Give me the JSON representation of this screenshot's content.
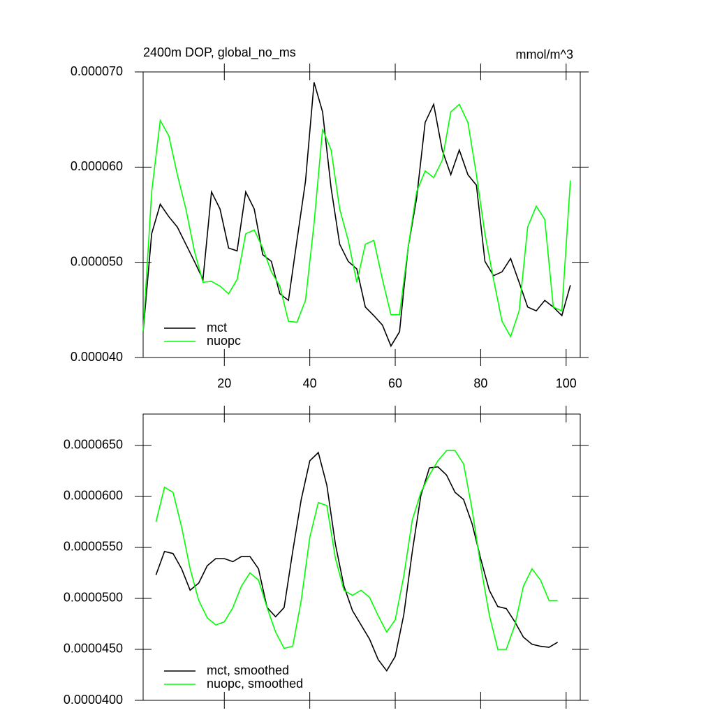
{
  "chart_data": [
    {
      "type": "line",
      "title": "2400m DOP, global_no_ms",
      "units": "mmol/m^3",
      "xlim": [
        1,
        103.3
      ],
      "xticks": [
        20,
        40,
        60,
        80,
        100
      ],
      "xtick_labels": true,
      "ylim": [
        4e-05,
        7e-05
      ],
      "yticks": [
        {
          "value": 4e-05,
          "label": "0.000040"
        },
        {
          "value": 5e-05,
          "label": "0.000050"
        },
        {
          "value": 6e-05,
          "label": "0.000060"
        },
        {
          "value": 7e-05,
          "label": "0.000070"
        }
      ],
      "legend": "lower left",
      "x": [
        1,
        3,
        5,
        7,
        9,
        11,
        13,
        15,
        17,
        19,
        21,
        23,
        25,
        27,
        29,
        31,
        33,
        35,
        37,
        39,
        41,
        43,
        45,
        47,
        49,
        51,
        53,
        55,
        57,
        59,
        61,
        63,
        65,
        67,
        69,
        71,
        73,
        75,
        77,
        79,
        81,
        83,
        85,
        87,
        89,
        91,
        93,
        95,
        97,
        99,
        101
      ],
      "series": [
        {
          "name": "mct",
          "color": "#000000",
          "values": [
            4.27e-05,
            5.3e-05,
            5.61e-05,
            5.48e-05,
            5.37e-05,
            5.19e-05,
            5.01e-05,
            4.82e-05,
            5.74e-05,
            5.56e-05,
            5.15e-05,
            5.12e-05,
            5.74e-05,
            5.56e-05,
            5.08e-05,
            5.01e-05,
            4.67e-05,
            4.6e-05,
            5.23e-05,
            5.85e-05,
            6.89e-05,
            6.58e-05,
            5.78e-05,
            5.19e-05,
            5.01e-05,
            4.93e-05,
            4.53e-05,
            4.44e-05,
            4.34e-05,
            4.12e-05,
            4.27e-05,
            5.15e-05,
            5.67e-05,
            6.47e-05,
            6.66e-05,
            6.18e-05,
            5.92e-05,
            6.18e-05,
            5.92e-05,
            5.81e-05,
            5.01e-05,
            4.86e-05,
            4.9e-05,
            5.04e-05,
            4.79e-05,
            4.53e-05,
            4.49e-05,
            4.6e-05,
            4.53e-05,
            4.44e-05,
            4.76e-05
          ]
        },
        {
          "name": "nuopc",
          "color": "#00ff00",
          "values": [
            4.27e-05,
            5.74e-05,
            6.49e-05,
            6.33e-05,
            5.92e-05,
            5.56e-05,
            5.12e-05,
            4.79e-05,
            4.8e-05,
            4.75e-05,
            4.67e-05,
            4.82e-05,
            5.3e-05,
            5.34e-05,
            5.15e-05,
            4.9e-05,
            4.75e-05,
            4.38e-05,
            4.37e-05,
            4.6e-05,
            5.41e-05,
            6.4e-05,
            6.18e-05,
            5.56e-05,
            5.23e-05,
            4.79e-05,
            5.19e-05,
            5.23e-05,
            4.82e-05,
            4.45e-05,
            4.45e-05,
            5.15e-05,
            5.74e-05,
            5.96e-05,
            5.89e-05,
            6.07e-05,
            6.58e-05,
            6.66e-05,
            6.47e-05,
            5.92e-05,
            5.3e-05,
            4.82e-05,
            4.38e-05,
            4.22e-05,
            4.49e-05,
            5.37e-05,
            5.59e-05,
            5.45e-05,
            4.53e-05,
            4.49e-05,
            5.86e-05
          ]
        }
      ]
    },
    {
      "type": "line",
      "xlim": [
        1,
        103.3
      ],
      "xticks": [
        20,
        40,
        60,
        80,
        100
      ],
      "xtick_labels": false,
      "ylim": [
        4e-05,
        6.808e-05
      ],
      "yticks": [
        {
          "value": 4e-05,
          "label": "0.0000400"
        },
        {
          "value": 4.5e-05,
          "label": "0.0000450"
        },
        {
          "value": 5e-05,
          "label": "0.0000500"
        },
        {
          "value": 5.5e-05,
          "label": "0.0000550"
        },
        {
          "value": 6e-05,
          "label": "0.0000600"
        },
        {
          "value": 6.5e-05,
          "label": "0.0000650"
        }
      ],
      "legend": "lower left",
      "x": [
        4,
        6,
        8,
        10,
        12,
        14,
        16,
        18,
        20,
        22,
        24,
        26,
        28,
        30,
        32,
        34,
        36,
        38,
        40,
        42,
        44,
        46,
        48,
        50,
        52,
        54,
        56,
        58,
        60,
        62,
        64,
        66,
        68,
        70,
        72,
        74,
        76,
        78,
        80,
        82,
        84,
        86,
        88,
        90,
        92,
        94,
        96,
        98
      ],
      "series": [
        {
          "name": "mct, smoothed",
          "color": "#000000",
          "values": [
            5.23e-05,
            5.46e-05,
            5.44e-05,
            5.29e-05,
            5.08e-05,
            5.15e-05,
            5.32e-05,
            5.39e-05,
            5.39e-05,
            5.36e-05,
            5.41e-05,
            5.41e-05,
            5.29e-05,
            4.91e-05,
            4.82e-05,
            4.91e-05,
            5.46e-05,
            5.97e-05,
            6.35e-05,
            6.43e-05,
            6.11e-05,
            5.53e-05,
            5.12e-05,
            4.88e-05,
            4.74e-05,
            4.6e-05,
            4.4e-05,
            4.29e-05,
            4.43e-05,
            4.84e-05,
            5.46e-05,
            6.01e-05,
            6.28e-05,
            6.29e-05,
            6.21e-05,
            6.04e-05,
            5.97e-05,
            5.73e-05,
            5.39e-05,
            5.08e-05,
            4.92e-05,
            4.9e-05,
            4.77e-05,
            4.62e-05,
            4.55e-05,
            4.53e-05,
            4.52e-05,
            4.57e-05
          ]
        },
        {
          "name": "nuopc, smoothed",
          "color": "#00ff00",
          "values": [
            5.75e-05,
            6.09e-05,
            6.04e-05,
            5.7e-05,
            5.29e-05,
            4.98e-05,
            4.81e-05,
            4.74e-05,
            4.77e-05,
            4.91e-05,
            5.12e-05,
            5.25e-05,
            5.18e-05,
            4.91e-05,
            4.67e-05,
            4.51e-05,
            4.53e-05,
            4.98e-05,
            5.6e-05,
            5.94e-05,
            5.91e-05,
            5.39e-05,
            5.08e-05,
            5.03e-05,
            5.08e-05,
            5.01e-05,
            4.83e-05,
            4.67e-05,
            4.79e-05,
            5.22e-05,
            5.77e-05,
            6.04e-05,
            6.21e-05,
            6.35e-05,
            6.45e-05,
            6.45e-05,
            6.32e-05,
            5.87e-05,
            5.32e-05,
            4.84e-05,
            4.5e-05,
            4.5e-05,
            4.74e-05,
            5.12e-05,
            5.29e-05,
            5.18e-05,
            4.98e-05,
            4.98e-05
          ]
        }
      ]
    }
  ]
}
